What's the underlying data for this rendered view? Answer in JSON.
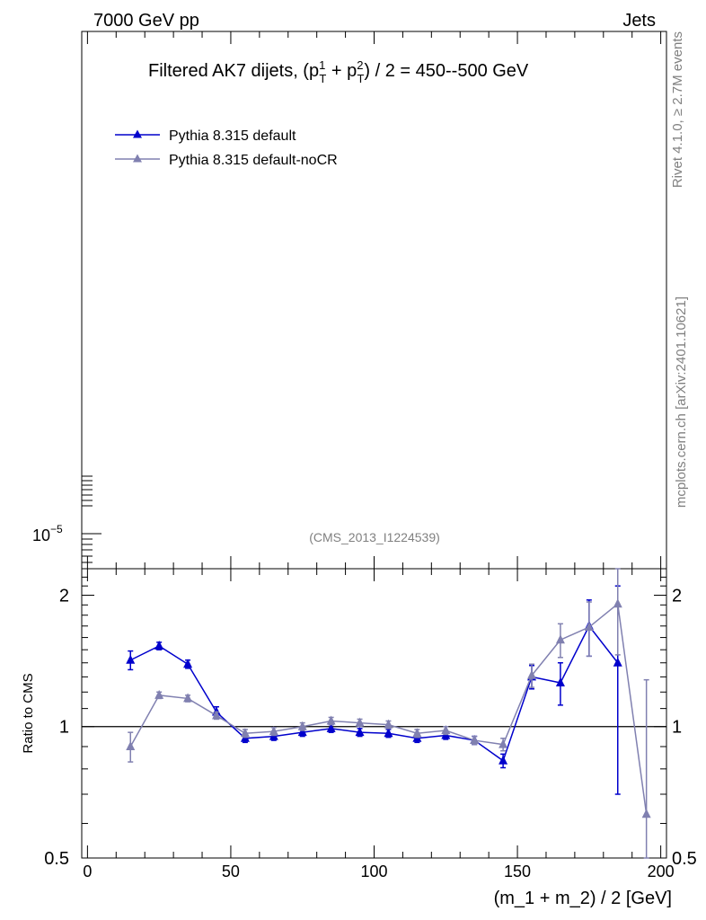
{
  "header": {
    "energy_label": "7000 GeV pp",
    "process_label": "Jets",
    "title_main": "Filtered AK7 dijets, (p",
    "title_sup1": "1",
    "title_sub1": "T",
    "title_plus": " + p",
    "title_sup2": "2",
    "title_sub2": "T",
    "title_tail": ") / 2 = 450--500 GeV"
  },
  "side": {
    "rivet_label": "Rivet 4.1.0, ≥ 2.7M events",
    "mcplots_label": "mcplots.cern.ch [arXiv:2401.10621]"
  },
  "main_panel": {
    "analysis_label": "(CMS_2013_I1224539)",
    "ytick_base": "10",
    "ytick_exp": "−5"
  },
  "legend": [
    {
      "label": "Pythia 8.315 default",
      "color": "#0000cc"
    },
    {
      "label": "Pythia 8.315 default-noCR",
      "color": "#8080b0"
    }
  ],
  "ratio_panel": {
    "ylabel": "Ratio to CMS",
    "xlabel": "(m_1 + m_2) / 2 [GeV]"
  },
  "chart_data": {
    "type": "line",
    "xlabel": "(m_1 + m_2) / 2 [GeV]",
    "ylabel": "Ratio to CMS",
    "xlim": [
      -2,
      202
    ],
    "ylim": [
      0.5,
      2.3
    ],
    "y_log_scale": true,
    "x_ticks": [
      0,
      50,
      100,
      150,
      200
    ],
    "y_ticks": [
      {
        "value": 0.5,
        "label": "0.5"
      },
      {
        "value": 1,
        "label": "1"
      },
      {
        "value": 2,
        "label": "2"
      }
    ],
    "reference_line": 1,
    "series": [
      {
        "name": "Pythia 8.315 default",
        "color": "#0000cc",
        "x": [
          15,
          25,
          35,
          45,
          55,
          65,
          75,
          85,
          95,
          105,
          115,
          125,
          135,
          145,
          155,
          165,
          175,
          185
        ],
        "y": [
          1.42,
          1.53,
          1.39,
          1.08,
          0.94,
          0.95,
          0.97,
          0.99,
          0.97,
          0.965,
          0.94,
          0.955,
          0.93,
          0.835,
          1.3,
          1.26,
          1.7,
          1.4
        ],
        "err": [
          0.07,
          0.03,
          0.03,
          0.03,
          0.02,
          0.02,
          0.02,
          0.02,
          0.02,
          0.02,
          0.02,
          0.02,
          0.02,
          0.03,
          0.08,
          0.14,
          0.25,
          0.7
        ]
      },
      {
        "name": "Pythia 8.315 default-noCR",
        "color": "#8080b0",
        "x": [
          15,
          25,
          35,
          45,
          55,
          65,
          75,
          85,
          95,
          105,
          115,
          125,
          135,
          145,
          155,
          165,
          175,
          185,
          195
        ],
        "y": [
          0.9,
          1.18,
          1.16,
          1.06,
          0.965,
          0.975,
          1.0,
          1.03,
          1.02,
          1.01,
          0.965,
          0.98,
          0.93,
          0.91,
          1.31,
          1.58,
          1.69,
          1.91,
          0.63
        ],
        "err": [
          0.07,
          0.02,
          0.02,
          0.02,
          0.02,
          0.02,
          0.02,
          0.02,
          0.02,
          0.02,
          0.02,
          0.02,
          0.02,
          0.03,
          0.08,
          0.14,
          0.24,
          0.45,
          0.65
        ]
      }
    ]
  }
}
